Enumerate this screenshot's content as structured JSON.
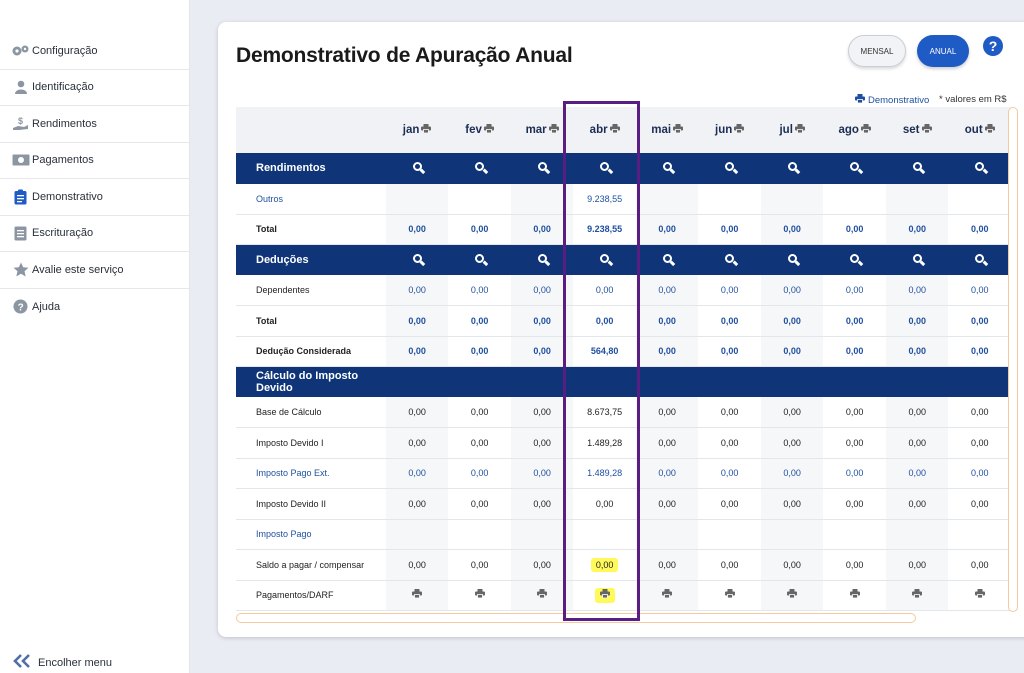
{
  "sidebar": {
    "items": [
      {
        "label": "Configuração",
        "icon": "gears-icon"
      },
      {
        "label": "Identificação",
        "icon": "user-icon"
      },
      {
        "label": "Rendimentos",
        "icon": "money-hand-icon"
      },
      {
        "label": "Pagamentos",
        "icon": "banknote-icon"
      },
      {
        "label": "Demonstrativo",
        "icon": "clipboard-icon"
      },
      {
        "label": "Escrituração",
        "icon": "ledger-icon"
      },
      {
        "label": "Avalie este serviço",
        "icon": "star-icon"
      },
      {
        "label": "Ajuda",
        "icon": "help-circle-icon"
      }
    ],
    "collapse_label": "Encolher menu"
  },
  "header": {
    "title": "Demonstrativo de Apuração Anual",
    "btn_mensal": "MENSAL",
    "btn_anual": "ANUAL",
    "help": "?",
    "demo_link": "Demonstrativo",
    "values_note": "* valores em R$"
  },
  "months": [
    "jan",
    "fev",
    "mar",
    "abr",
    "mai",
    "jun",
    "jul",
    "ago",
    "set",
    "out"
  ],
  "sections": {
    "rendimentos": "Rendimentos",
    "deducoes": "Deduções",
    "calculo": "Cálculo do Imposto Devido"
  },
  "rows": {
    "outros": {
      "label": "Outros",
      "values": [
        "",
        "",
        "",
        "9.238,55",
        "",
        "",
        "",
        "",
        "",
        ""
      ]
    },
    "total_rend": {
      "label": "Total",
      "values": [
        "0,00",
        "0,00",
        "0,00",
        "9.238,55",
        "0,00",
        "0,00",
        "0,00",
        "0,00",
        "0,00",
        "0,00"
      ]
    },
    "dependentes": {
      "label": "Dependentes",
      "values": [
        "0,00",
        "0,00",
        "0,00",
        "0,00",
        "0,00",
        "0,00",
        "0,00",
        "0,00",
        "0,00",
        "0,00"
      ]
    },
    "total_ded": {
      "label": "Total",
      "values": [
        "0,00",
        "0,00",
        "0,00",
        "0,00",
        "0,00",
        "0,00",
        "0,00",
        "0,00",
        "0,00",
        "0,00"
      ]
    },
    "deducao_considerada": {
      "label": "Dedução Considerada",
      "values": [
        "0,00",
        "0,00",
        "0,00",
        "564,80",
        "0,00",
        "0,00",
        "0,00",
        "0,00",
        "0,00",
        "0,00"
      ]
    },
    "base_calculo": {
      "label": "Base de Cálculo",
      "values": [
        "0,00",
        "0,00",
        "0,00",
        "8.673,75",
        "0,00",
        "0,00",
        "0,00",
        "0,00",
        "0,00",
        "0,00"
      ]
    },
    "imposto_devido_1": {
      "label": "Imposto Devido I",
      "values": [
        "0,00",
        "0,00",
        "0,00",
        "1.489,28",
        "0,00",
        "0,00",
        "0,00",
        "0,00",
        "0,00",
        "0,00"
      ]
    },
    "imposto_pago_ext": {
      "label": "Imposto Pago Ext.",
      "values": [
        "0,00",
        "0,00",
        "0,00",
        "1.489,28",
        "0,00",
        "0,00",
        "0,00",
        "0,00",
        "0,00",
        "0,00"
      ]
    },
    "imposto_devido_2": {
      "label": "Imposto Devido II",
      "values": [
        "0,00",
        "0,00",
        "0,00",
        "0,00",
        "0,00",
        "0,00",
        "0,00",
        "0,00",
        "0,00",
        "0,00"
      ]
    },
    "imposto_pago": {
      "label": "Imposto Pago",
      "values": [
        "",
        "",
        "",
        "",
        "",
        "",
        "",
        "",
        "",
        ""
      ]
    },
    "saldo": {
      "label": "Saldo a pagar / compensar",
      "values": [
        "0,00",
        "0,00",
        "0,00",
        "0,00",
        "0,00",
        "0,00",
        "0,00",
        "0,00",
        "0,00",
        "0,00"
      ]
    },
    "pagamentos_darf": {
      "label": "Pagamentos/DARF"
    }
  },
  "colors": {
    "section_bg": "#0f3578",
    "accent": "#1f5bc4",
    "highlight": "#fff95a",
    "annotation_box": "#5a1e83"
  }
}
